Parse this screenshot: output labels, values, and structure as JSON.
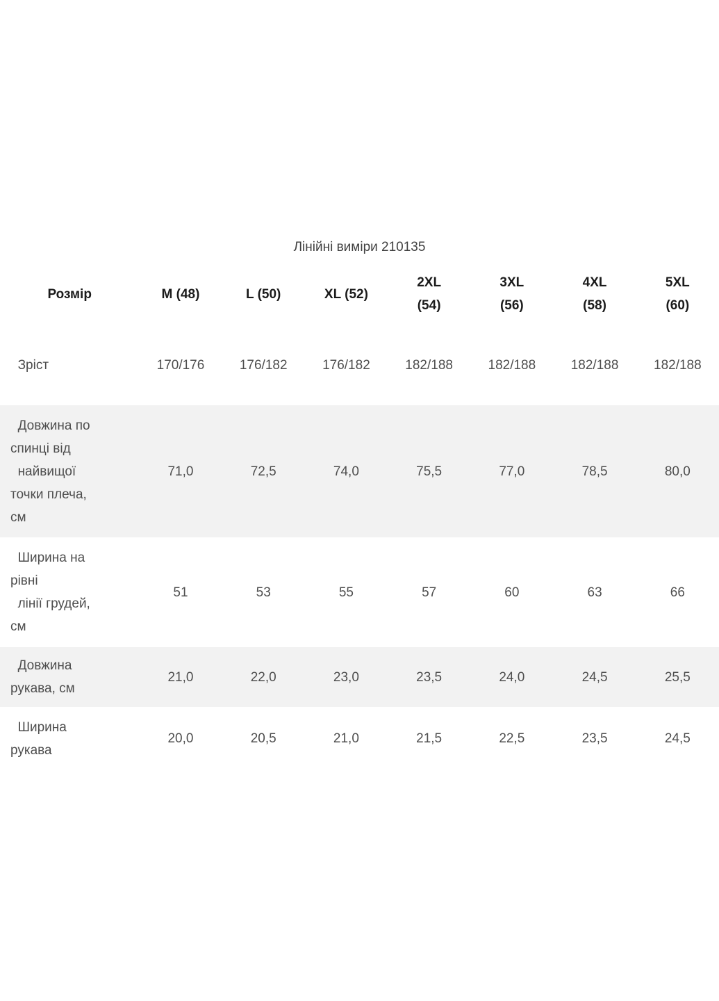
{
  "page": {
    "title": "Лінійні виміри 210135"
  },
  "colors": {
    "shaded_row_bg": "#f2f2f2",
    "header_text": "#1b1b1b",
    "body_text": "#4e4e4e",
    "page_bg": "#ffffff"
  },
  "table": {
    "columns": [
      "Розмір",
      "M (48)",
      "L (50)",
      "XL (52)",
      "2XL\n(54)",
      "3XL\n(56)",
      "4XL\n(58)",
      "5XL\n(60)"
    ],
    "rows": [
      {
        "label": "  Зріст",
        "shaded": false,
        "values": [
          "170/176",
          "176/182",
          "176/182",
          "182/188",
          "182/188",
          "182/188",
          "182/188"
        ]
      },
      {
        "label": "  Довжина по\nспинці від\n  найвищої\nточки плеча,\nсм",
        "shaded": true,
        "values": [
          "71,0",
          "72,5",
          "74,0",
          "75,5",
          "77,0",
          "78,5",
          "80,0"
        ]
      },
      {
        "label": "  Ширина на\nрівні\n  лінії грудей,\nсм",
        "shaded": false,
        "values": [
          "51",
          "53",
          "55",
          "57",
          "60",
          "63",
          "66"
        ]
      },
      {
        "label": "  Довжина\nрукава, см",
        "shaded": true,
        "values": [
          "21,0",
          "22,0",
          "23,0",
          "23,5",
          "24,0",
          "24,5",
          "25,5"
        ]
      },
      {
        "label": "  Ширина\nрукава",
        "shaded": false,
        "values": [
          "20,0",
          "20,5",
          "21,0",
          "21,5",
          "22,5",
          "23,5",
          "24,5"
        ]
      }
    ]
  }
}
